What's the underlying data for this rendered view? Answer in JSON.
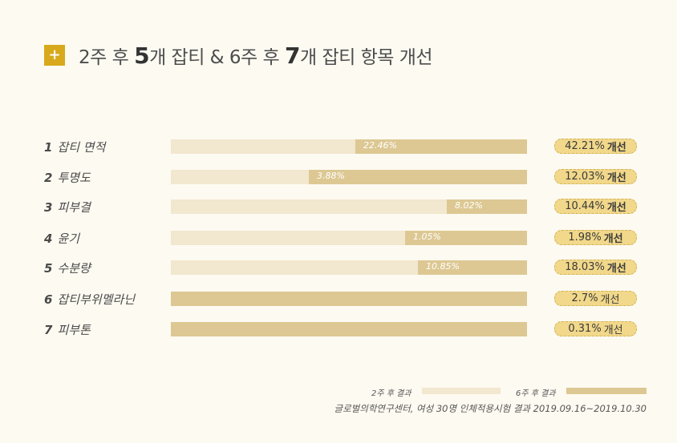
{
  "title": {
    "p1": "2주 후 ",
    "n1": "5",
    "p2": "개 잡티 & 6주 후 ",
    "n2": "7",
    "p3": "개 잡티 항목 개선"
  },
  "chart_data": {
    "type": "bar",
    "categories": [
      {
        "num": "1",
        "label": "잡티 면적"
      },
      {
        "num": "2",
        "label": "투명도"
      },
      {
        "num": "3",
        "label": "피부결"
      },
      {
        "num": "4",
        "label": "윤기"
      },
      {
        "num": "5",
        "label": "수분량"
      },
      {
        "num": "6",
        "label": "잡티부위멜라닌"
      },
      {
        "num": "7",
        "label": "피부톤"
      }
    ],
    "series": [
      {
        "name": "2주 후 결과",
        "values": [
          22.46,
          3.88,
          8.02,
          1.05,
          10.85,
          null,
          null
        ],
        "labels": [
          "22.46%",
          "3.88%",
          "8.02%",
          "1.05%",
          "10.85%",
          "",
          ""
        ]
      },
      {
        "name": "6주 후 결과",
        "values": [
          42.21,
          12.03,
          10.44,
          1.98,
          18.03,
          2.7,
          0.31
        ],
        "labels": [
          "42.21%",
          "12.03%",
          "10.44%",
          "1.98%",
          "18.03%",
          "2.7%",
          "0.31%"
        ]
      }
    ],
    "badge_suffix": "개선"
  },
  "colors": {
    "series_2w": "#f2e7cf",
    "series_6w": "#ddc893",
    "accent": "#d8a91c",
    "badge": "#f1d88a"
  },
  "source": "글로벌의학연구센터, 여성 30명 인체적용시험 결과  2019.09.16~2019.10.30"
}
